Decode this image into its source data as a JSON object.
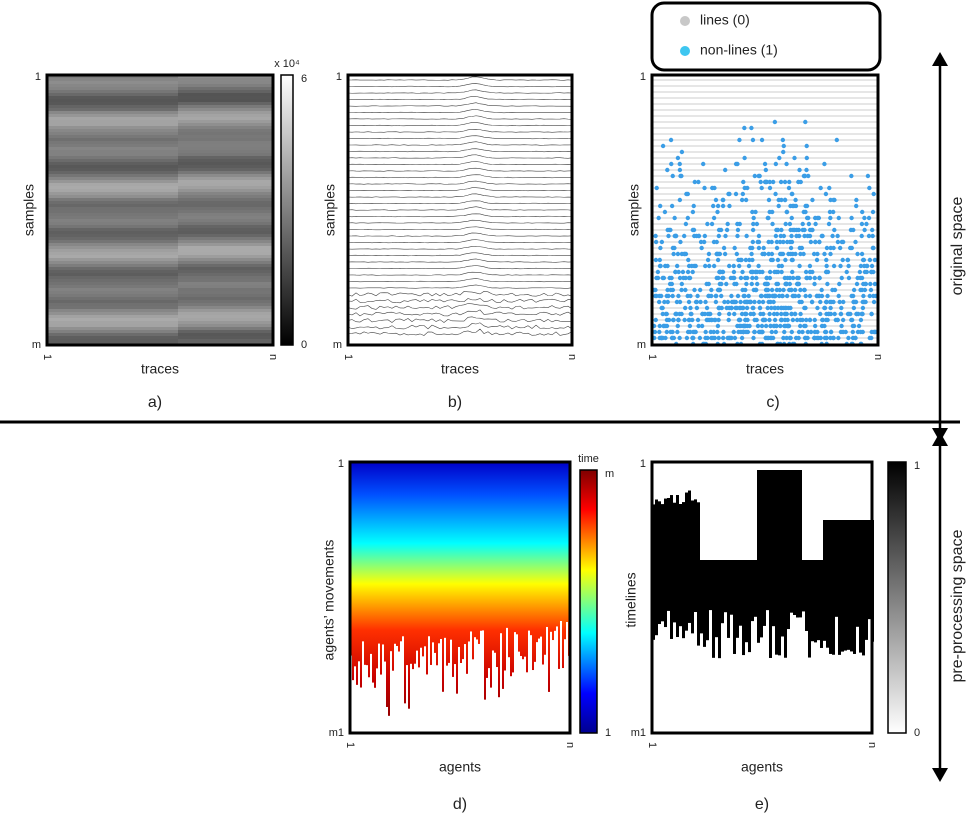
{
  "panels": [
    {
      "label": "a)",
      "y_label": "samples",
      "x_label": "traces",
      "y_top": "1",
      "y_bottom": "m",
      "x_left": "1",
      "x_right": "n",
      "colorbar": {
        "title": "x 10⁴",
        "top": "6",
        "bottom": "0"
      }
    },
    {
      "label": "b)",
      "y_label": "samples",
      "x_label": "traces",
      "y_top": "1",
      "y_bottom": "m",
      "x_left": "1",
      "x_right": "n"
    },
    {
      "label": "c)",
      "y_label": "samples",
      "x_label": "traces",
      "y_top": "1",
      "y_bottom": "m",
      "x_left": "1",
      "x_right": "n",
      "legend": [
        "lines (0)",
        "non-lines (1)"
      ]
    },
    {
      "label": "d)",
      "y_label": "agents’ movements",
      "x_label": "agents",
      "y_top": "1",
      "y_bottom": "m1",
      "x_left": "1",
      "x_right": "n",
      "colorbar": {
        "title": "time",
        "top": "m",
        "bottom": "1"
      }
    },
    {
      "label": "e)",
      "y_label": "timelines",
      "x_label": "agents",
      "y_top": "1",
      "y_bottom": "m1",
      "x_left": "1",
      "x_right": "n",
      "colorbar": {
        "top": "1",
        "bottom": "0"
      }
    }
  ],
  "spaces": [
    "original space",
    "pre-processing space"
  ]
}
